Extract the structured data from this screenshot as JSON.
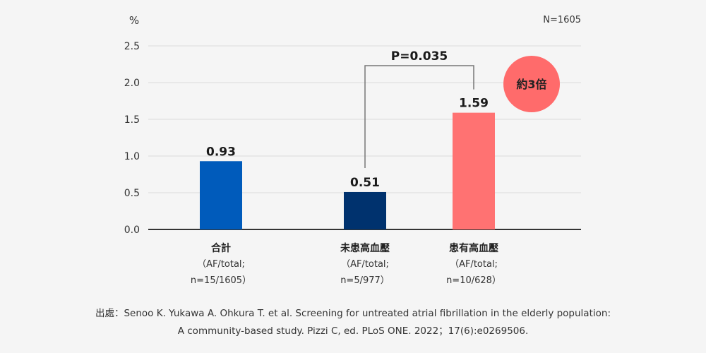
{
  "chart_data": {
    "type": "bar",
    "y_unit": "%",
    "n_label": "N=1605",
    "yticks": [
      "0.0",
      "0.5",
      "1.0",
      "1.5",
      "2.0",
      "2.5"
    ],
    "ylim": [
      0,
      2.5
    ],
    "grid": true,
    "categories": [
      {
        "name": "合計",
        "sub1": "（AF/total;",
        "sub2": "n=15/1605）",
        "value": 0.93,
        "value_label": "0.93",
        "color": "#005bbb"
      },
      {
        "name": "未患高血壓",
        "sub1": "（AF/total;",
        "sub2": "n=5/977）",
        "value": 0.51,
        "value_label": "0.51",
        "color": "#00326e"
      },
      {
        "name": "患有高血壓",
        "sub1": "（AF/total;",
        "sub2": "n=10/628）",
        "value": 1.59,
        "value_label": "1.59",
        "color": "#ff7272"
      }
    ],
    "comparison": {
      "label": "P=0.035",
      "between": [
        1,
        2
      ]
    },
    "badge": {
      "text": "約3倍",
      "color": "#ff6b6b"
    }
  },
  "citation": {
    "line1": "出處：Senoo K. Yukawa A. Ohkura T. et al. Screening for untreated atrial fibrillation in the elderly population:",
    "line2": "A community-based study. Pizzi C, ed. PLoS ONE. 2022；17(6):e0269506."
  }
}
